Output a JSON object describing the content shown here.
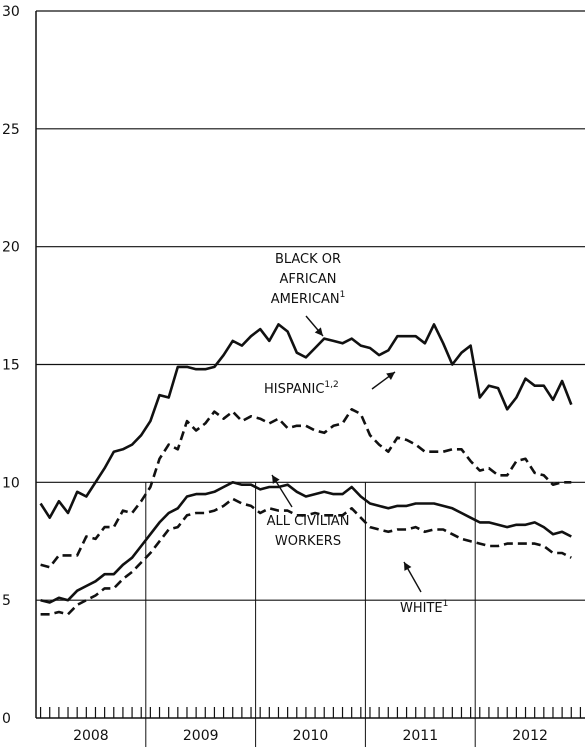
{
  "chart_data": {
    "type": "line",
    "title": "",
    "xlabel": "",
    "ylabel": "",
    "ylim": [
      0,
      30
    ],
    "y_ticks": [
      0,
      5,
      10,
      15,
      20,
      25,
      30
    ],
    "years": [
      "2008",
      "2009",
      "2010",
      "2011",
      "2012"
    ],
    "grid": "horizontal",
    "series": [
      {
        "name": "BLACK OR AFRICAN AMERICAN",
        "style": "solid",
        "values": [
          9.1,
          8.5,
          9.2,
          8.7,
          9.6,
          9.4,
          10.0,
          10.6,
          11.3,
          11.4,
          11.6,
          12.0,
          12.6,
          13.7,
          13.6,
          14.9,
          14.9,
          14.8,
          14.8,
          14.9,
          15.4,
          16.0,
          15.8,
          16.2,
          16.5,
          16.0,
          16.7,
          16.4,
          15.5,
          15.3,
          15.7,
          16.1,
          16.0,
          15.9,
          16.1,
          15.8,
          15.7,
          15.4,
          15.6,
          16.2,
          16.2,
          16.2,
          15.9,
          16.7,
          15.9,
          15.0,
          15.5,
          15.8,
          13.6,
          14.1,
          14.0,
          13.1,
          13.6,
          14.4,
          14.1,
          14.1,
          13.5,
          14.3,
          13.3
        ]
      },
      {
        "name": "HISPANIC",
        "style": "dashed",
        "values": [
          6.5,
          6.4,
          6.9,
          6.9,
          6.9,
          7.7,
          7.6,
          8.1,
          8.1,
          8.8,
          8.7,
          9.2,
          9.8,
          11.0,
          11.6,
          11.4,
          12.6,
          12.2,
          12.5,
          13.0,
          12.7,
          13.0,
          12.6,
          12.8,
          12.7,
          12.5,
          12.7,
          12.3,
          12.4,
          12.4,
          12.2,
          12.1,
          12.4,
          12.5,
          13.1,
          12.9,
          12.0,
          11.6,
          11.3,
          11.9,
          11.8,
          11.6,
          11.3,
          11.3,
          11.3,
          11.4,
          11.4,
          10.9,
          10.5,
          10.6,
          10.3,
          10.3,
          10.9,
          11.0,
          10.4,
          10.3,
          9.9,
          10.0,
          10.0
        ]
      },
      {
        "name": "ALL CIVILIAN WORKERS",
        "style": "solid",
        "values": [
          5.0,
          4.9,
          5.1,
          5.0,
          5.4,
          5.6,
          5.8,
          6.1,
          6.1,
          6.5,
          6.8,
          7.3,
          7.8,
          8.3,
          8.7,
          8.9,
          9.4,
          9.5,
          9.5,
          9.6,
          9.8,
          10.0,
          9.9,
          9.9,
          9.7,
          9.8,
          9.8,
          9.9,
          9.6,
          9.4,
          9.5,
          9.6,
          9.5,
          9.5,
          9.8,
          9.4,
          9.1,
          9.0,
          8.9,
          9.0,
          9.0,
          9.1,
          9.1,
          9.1,
          9.0,
          8.9,
          8.7,
          8.5,
          8.3,
          8.3,
          8.2,
          8.1,
          8.2,
          8.2,
          8.3,
          8.1,
          7.8,
          7.9,
          7.7
        ]
      },
      {
        "name": "WHITE",
        "style": "dashed",
        "values": [
          4.4,
          4.4,
          4.5,
          4.4,
          4.8,
          5.0,
          5.2,
          5.5,
          5.5,
          5.9,
          6.2,
          6.6,
          7.0,
          7.5,
          8.0,
          8.1,
          8.6,
          8.7,
          8.7,
          8.8,
          9.0,
          9.3,
          9.1,
          9.0,
          8.7,
          8.9,
          8.8,
          8.8,
          8.6,
          8.6,
          8.7,
          8.6,
          8.6,
          8.6,
          8.9,
          8.5,
          8.1,
          8.0,
          7.9,
          8.0,
          8.0,
          8.1,
          7.9,
          8.0,
          8.0,
          7.8,
          7.6,
          7.5,
          7.4,
          7.3,
          7.3,
          7.4,
          7.4,
          7.4,
          7.4,
          7.3,
          7.0,
          7.0,
          6.8
        ]
      }
    ],
    "annotations": [
      {
        "lines": [
          "BLACK OR",
          "AFRICAN",
          "AMERICAN"
        ],
        "sup": "1"
      },
      {
        "lines": [
          "HISPANIC"
        ],
        "sup": "1,2"
      },
      {
        "lines": [
          "ALL CIVILIAN",
          "WORKERS"
        ],
        "sup": ""
      },
      {
        "lines": [
          "WHITE"
        ],
        "sup": "1"
      }
    ]
  }
}
